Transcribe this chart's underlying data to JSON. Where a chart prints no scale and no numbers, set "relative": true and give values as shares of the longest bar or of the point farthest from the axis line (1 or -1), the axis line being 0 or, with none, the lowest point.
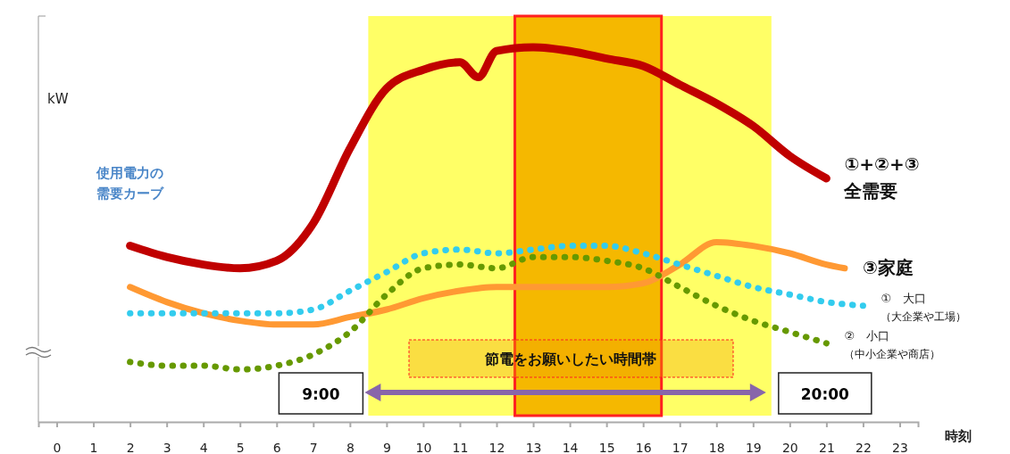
{
  "chart_data": {
    "type": "line",
    "relative": true,
    "ylabel": "kW",
    "xlabel": "時刻",
    "xlim": [
      -0.5,
      23.5
    ],
    "xticks": [
      0,
      1,
      2,
      3,
      4,
      5,
      6,
      7,
      8,
      9,
      10,
      11,
      12,
      13,
      14,
      15,
      16,
      17,
      18,
      19,
      20,
      21,
      22,
      23
    ],
    "grid": false,
    "legend": false,
    "series": [
      {
        "name": "①+②+③\n全需要",
        "color": "#c00000",
        "line_style": "solid",
        "x": [
          2,
          3,
          4,
          5,
          6,
          7,
          8,
          9,
          10,
          11,
          11.5,
          12,
          13,
          14,
          15,
          16,
          17,
          18,
          19,
          20,
          21
        ],
        "values": [
          0.47,
          0.44,
          0.42,
          0.41,
          0.43,
          0.53,
          0.73,
          0.89,
          0.94,
          0.96,
          0.92,
          0.99,
          1.0,
          0.99,
          0.97,
          0.95,
          0.9,
          0.85,
          0.79,
          0.71,
          0.65
        ]
      },
      {
        "name": "③家庭",
        "color": "#ff9933",
        "line_style": "solid",
        "x": [
          2,
          3,
          4,
          5,
          6,
          7,
          8,
          9,
          10,
          11,
          12,
          13,
          14,
          15,
          16,
          17,
          18,
          19,
          20,
          21,
          21.5
        ],
        "values": [
          0.36,
          0.32,
          0.29,
          0.27,
          0.26,
          0.26,
          0.28,
          0.3,
          0.33,
          0.35,
          0.36,
          0.36,
          0.36,
          0.36,
          0.37,
          0.42,
          0.48,
          0.47,
          0.45,
          0.42,
          0.41
        ]
      },
      {
        "name": "①　大口（大企業や工場）",
        "color": "#33ccee",
        "line_style": "dotted",
        "x": [
          2,
          3,
          4,
          5,
          6,
          7,
          8,
          9,
          10,
          11,
          12,
          13,
          14,
          15,
          16,
          17,
          18,
          19,
          20,
          21,
          22
        ],
        "values": [
          0.29,
          0.29,
          0.29,
          0.29,
          0.29,
          0.3,
          0.35,
          0.4,
          0.45,
          0.46,
          0.45,
          0.46,
          0.47,
          0.47,
          0.45,
          0.42,
          0.39,
          0.36,
          0.34,
          0.32,
          0.31
        ]
      },
      {
        "name": "②　小口（中小企業や商店）",
        "color": "#669900",
        "line_style": "dotted",
        "x": [
          2,
          3,
          4,
          5,
          6,
          7,
          8,
          9,
          10,
          11,
          12,
          13,
          14,
          15,
          16,
          17,
          18,
          19,
          20,
          21
        ],
        "values": [
          0.16,
          0.15,
          0.15,
          0.14,
          0.15,
          0.18,
          0.24,
          0.34,
          0.41,
          0.42,
          0.41,
          0.44,
          0.44,
          0.43,
          0.41,
          0.36,
          0.31,
          0.27,
          0.24,
          0.21
        ]
      }
    ],
    "bands": [
      {
        "axis": "x",
        "from": 8.5,
        "to": 19.5,
        "label": "節電をお願いしたい時間帯",
        "color": "#ffff66"
      },
      {
        "axis": "x",
        "from": 12.5,
        "to": 16.5,
        "color": "#f5b800"
      }
    ],
    "annotations": [
      "使用電力の需要カーブ",
      "9:00",
      "20:00"
    ]
  }
}
